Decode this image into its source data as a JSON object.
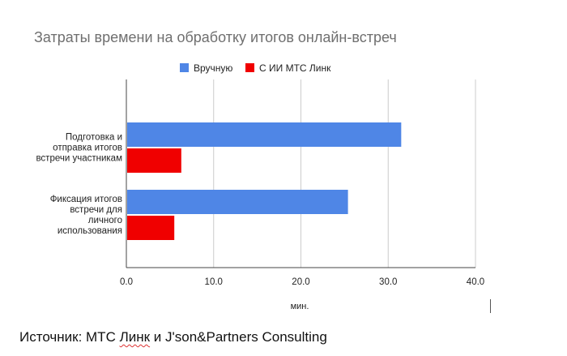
{
  "chart_data": {
    "type": "bar",
    "orientation": "horizontal",
    "title": "Затраты времени на обработку итогов онлайн-встреч",
    "xlabel": "мин.",
    "ylabel": "",
    "xlim": [
      0,
      40
    ],
    "x_ticks": [
      "0.0",
      "10.0",
      "20.0",
      "30.0",
      "40.0"
    ],
    "grid": true,
    "legend_position": "top",
    "categories": [
      [
        "Подготовка и",
        "отправка итогов",
        "встречи участникам"
      ],
      [
        "Фиксация итогов",
        "встречи для",
        "личного",
        "использования"
      ]
    ],
    "series": [
      {
        "name": "Вручную",
        "color": "#4f86e6",
        "values": [
          31.4,
          25.3
        ]
      },
      {
        "name": "С ИИ МТС Линк",
        "color": "#f00000",
        "values": [
          6.2,
          5.4
        ]
      }
    ]
  },
  "source": {
    "prefix": "Источник: МТС ",
    "underlined": "Линк",
    "suffix": " и J'son&Partners Consulting"
  }
}
